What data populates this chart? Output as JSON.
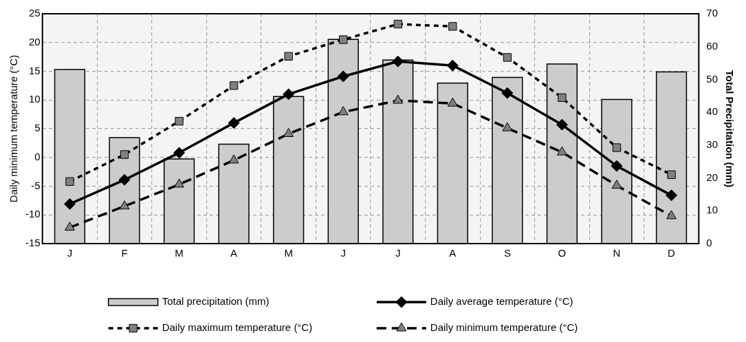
{
  "chart_data": {
    "type": "bar",
    "categories": [
      "J",
      "F",
      "M",
      "A",
      "M",
      "J",
      "J",
      "A",
      "S",
      "O",
      "N",
      "D"
    ],
    "ylabel": "Daily minimum temperature (°C)",
    "y2label": "Total Precipitation (mm)",
    "ylim": [
      -15,
      25
    ],
    "yticks": [
      -15,
      -10,
      -5,
      0,
      5,
      10,
      15,
      20,
      25
    ],
    "y2lim": [
      0,
      70
    ],
    "y2ticks": [
      0,
      10,
      20,
      30,
      40,
      50,
      60,
      70
    ],
    "grid": true,
    "legend": "bottom",
    "series": [
      {
        "name": "Total precipitation (mm)",
        "axis": "y2",
        "color": "#cccccc",
        "values": [
          53.0,
          32.3,
          25.8,
          30.3,
          44.8,
          62.2,
          55.9,
          48.9,
          50.6,
          54.7,
          43.9,
          52.3
        ]
      },
      {
        "name": "Daily average temperature (°C)",
        "type": "line",
        "color": "#000000",
        "marker": "diamond",
        "line_style": "solid",
        "values": [
          -8.1,
          -3.9,
          0.8,
          6.0,
          11.0,
          14.1,
          16.7,
          16.0,
          11.2,
          5.7,
          -1.5,
          -6.6
        ]
      },
      {
        "name": "Daily maximum temperature (°C)",
        "type": "line",
        "color": "#000000",
        "marker": "square",
        "line_style": "dotted",
        "values": [
          -4.2,
          0.5,
          6.3,
          12.5,
          17.6,
          20.5,
          23.2,
          22.8,
          17.4,
          10.4,
          1.7,
          -3.0
        ]
      },
      {
        "name": "Daily minimum temperature (°C)",
        "type": "line",
        "color": "#000000",
        "marker": "triangle",
        "line_style": "dashed",
        "values": [
          -12.2,
          -8.5,
          -4.7,
          -0.5,
          4.1,
          7.9,
          9.9,
          9.4,
          5.1,
          0.9,
          -4.9,
          -10.2
        ]
      }
    ]
  }
}
